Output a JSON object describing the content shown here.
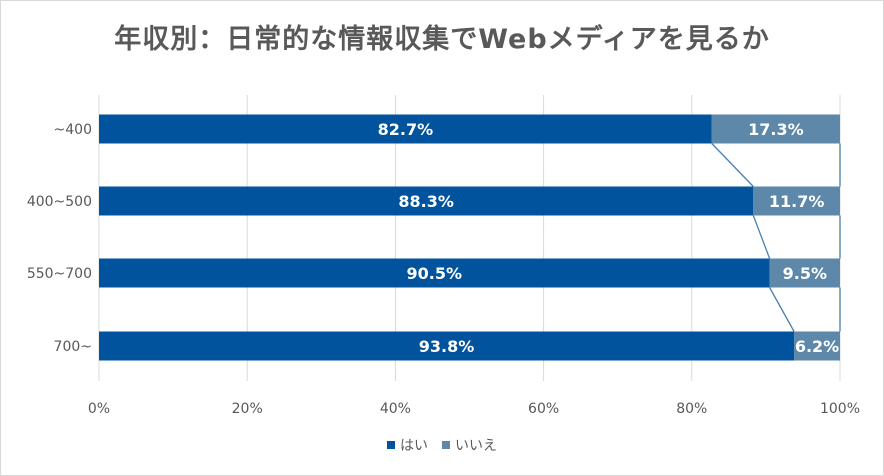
{
  "chart_data": {
    "type": "bar",
    "orientation": "horizontal",
    "stacked": "percent",
    "title": "年収別：日常的な情報収集でWebメディアを見るか",
    "categories": [
      "~400",
      "400~500",
      "550~700",
      "700~"
    ],
    "series": [
      {
        "name": "はい",
        "values": [
          82.7,
          88.3,
          90.5,
          93.8
        ],
        "labels": [
          "82.7%",
          "88.3%",
          "90.5%",
          "93.8%"
        ],
        "color": "#00539c"
      },
      {
        "name": "いいえ",
        "values": [
          17.3,
          11.7,
          9.5,
          6.2
        ],
        "labels": [
          "17.3%",
          "11.7%",
          "9.5%",
          "6.2%"
        ],
        "color": "#5d88aa"
      }
    ],
    "x_ticks": [
      "0%",
      "20%",
      "40%",
      "60%",
      "80%",
      "100%"
    ],
    "xlim": [
      0,
      100
    ],
    "grid": true,
    "series_lines": true,
    "legend_position": "bottom"
  }
}
